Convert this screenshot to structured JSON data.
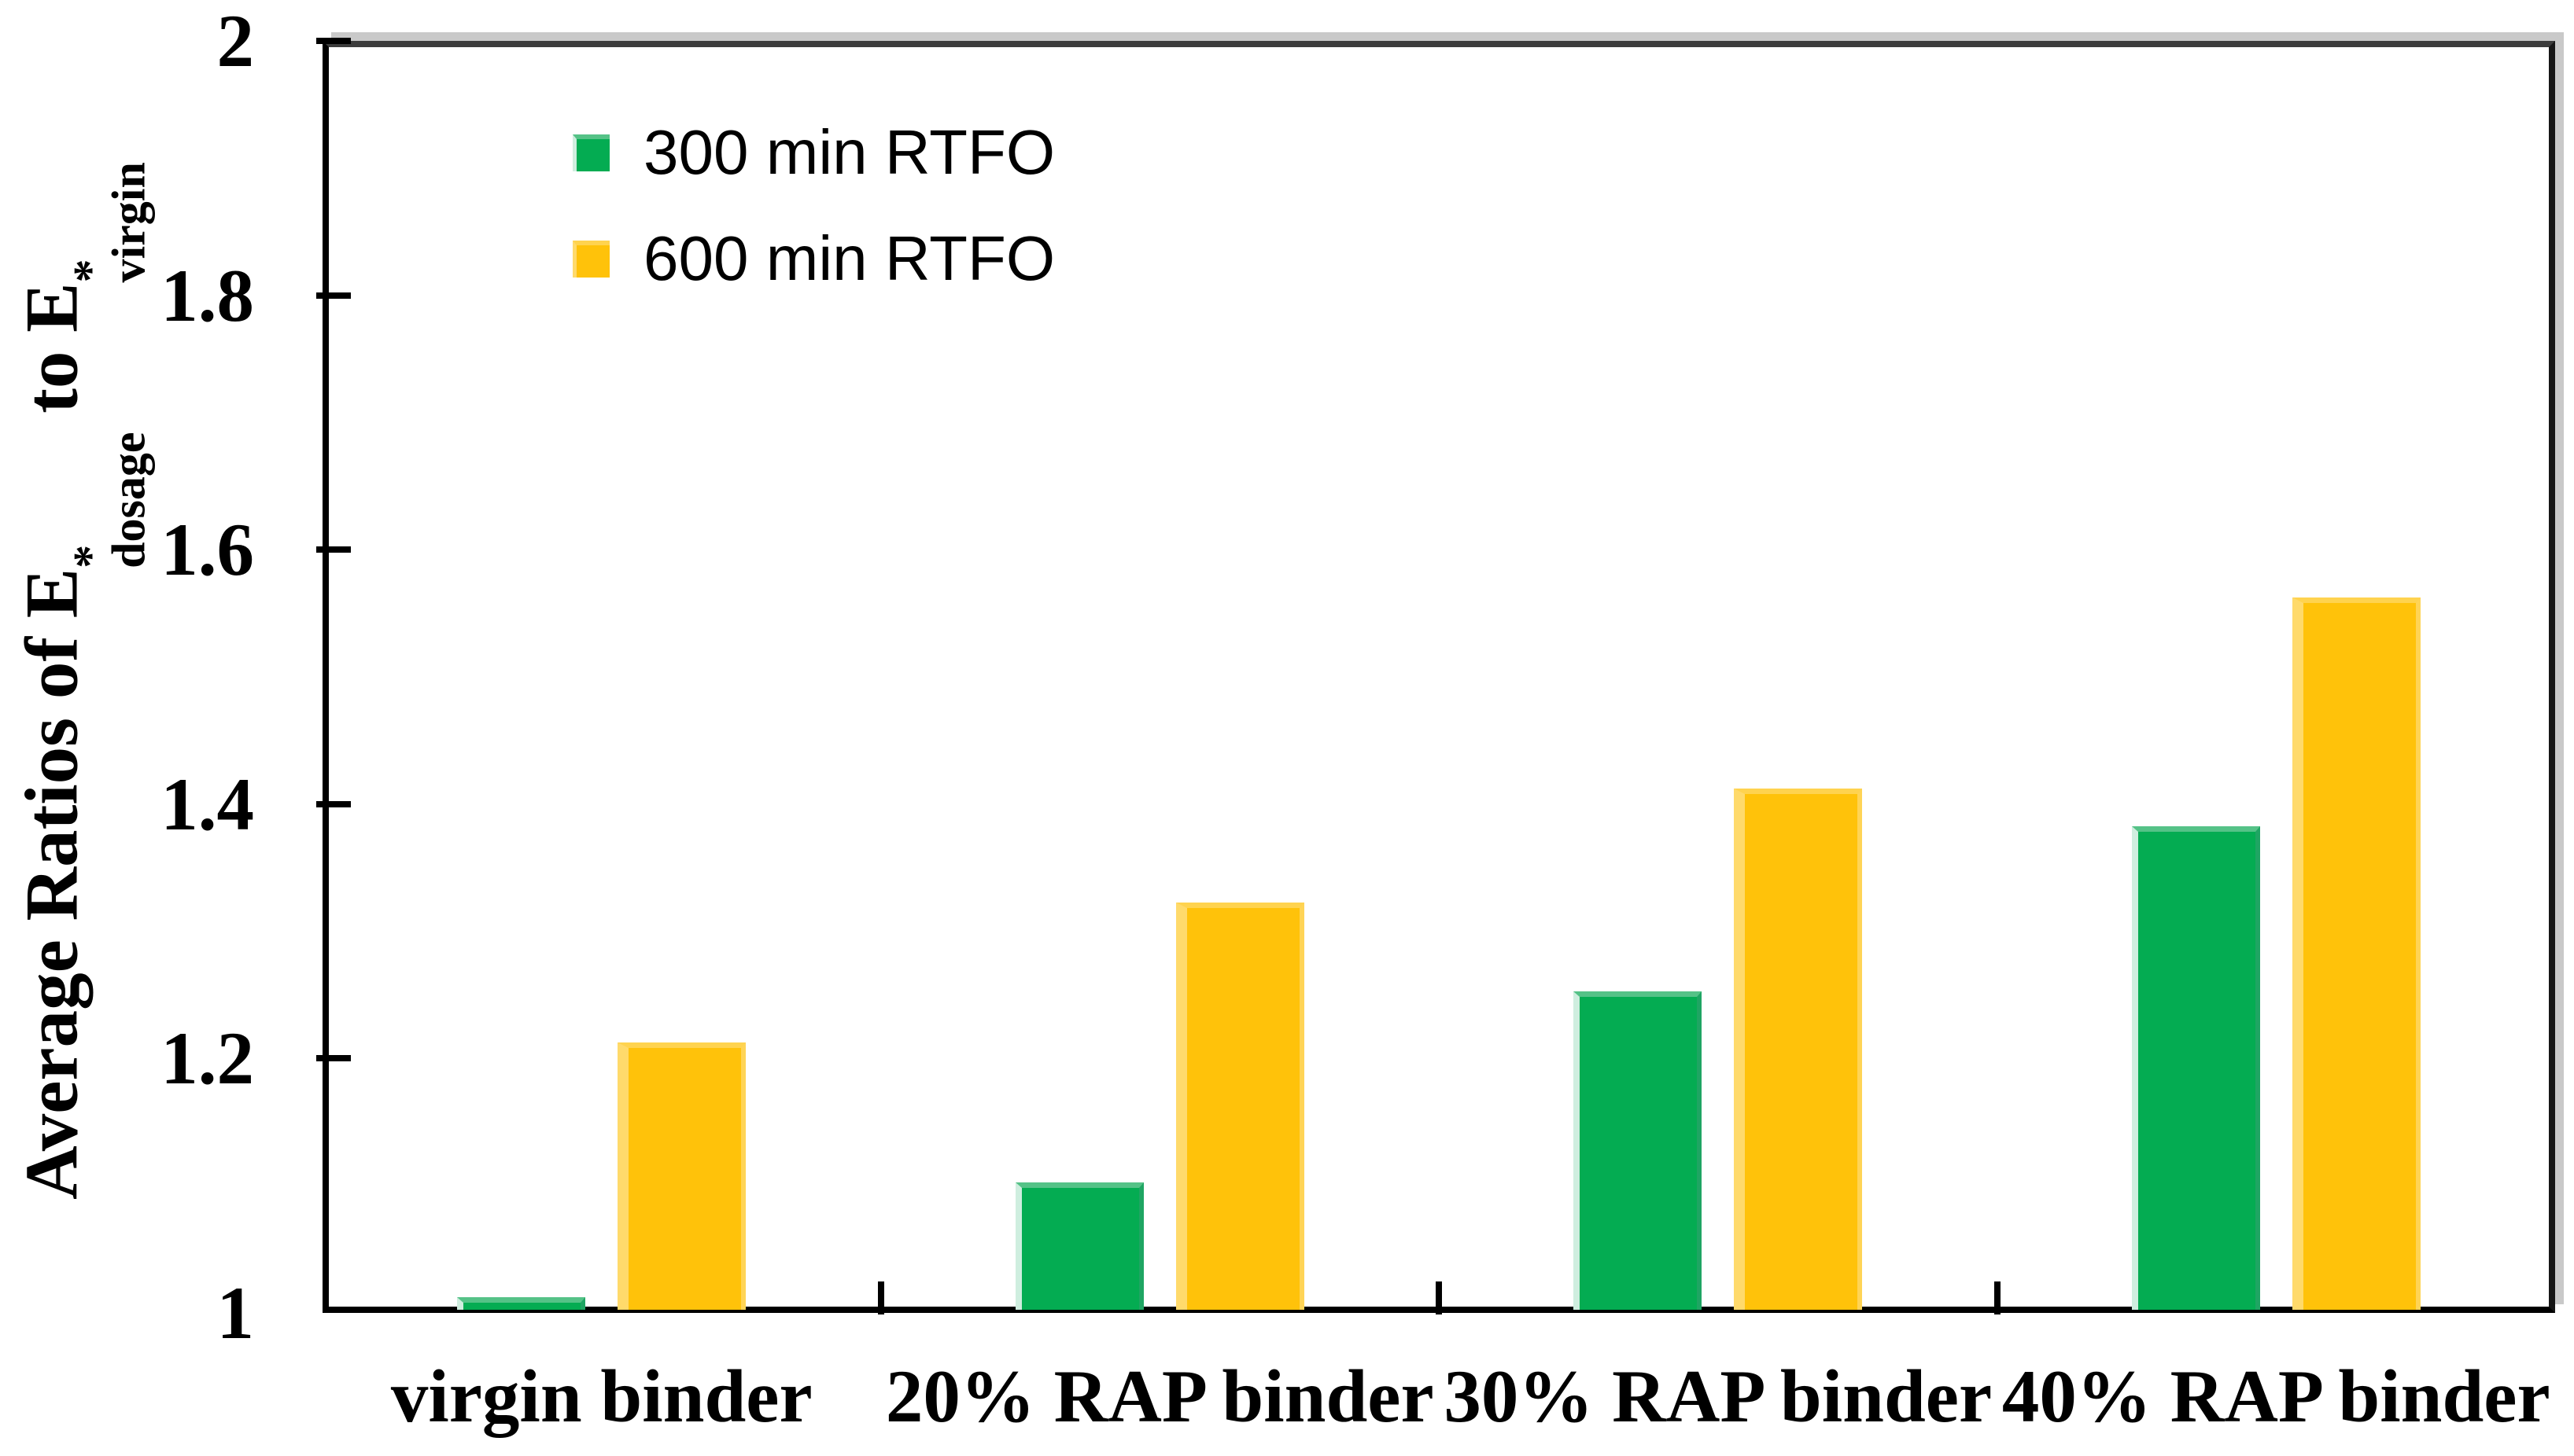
{
  "figure": {
    "background": "#FFFFFF",
    "axis_color": "#000000",
    "plot_border_top_color": "#3C3C3C",
    "plot_border_shadow_color": "#C9C9C9"
  },
  "y_axis_title": {
    "prefix": "Average Ratios of ",
    "e1": "E",
    "e1_sup": "*",
    "e1_sub": "dosage",
    "mid": " to ",
    "e2": "E",
    "e2_sup": "*",
    "e2_sub": "virgin"
  },
  "chart_data": {
    "type": "bar",
    "title": "",
    "xlabel": "",
    "ylabel": "Average Ratios of E*_dosage to E*_virgin",
    "categories": [
      "virgin binder",
      "20% RAP binder",
      "30% RAP binder",
      "40% RAP binder"
    ],
    "series": [
      {
        "name": "300 min RTFO",
        "values": [
          1.01,
          1.1,
          1.25,
          1.38
        ],
        "color": "#04AC52",
        "edge_top": "#55C287",
        "edge_left": "#CFEEDF",
        "edge_right": "#1FA563"
      },
      {
        "name": "600 min RTFO",
        "values": [
          1.21,
          1.32,
          1.41,
          1.56
        ],
        "color": "#FFC20A",
        "edge_top": "#FFD34F",
        "edge_left": "#FFDA6B",
        "edge_right": "#FFD456"
      }
    ],
    "ylim": [
      1,
      2
    ],
    "ytick_step": 0.2,
    "ytick_labels": [
      "1",
      "1.2",
      "1.4",
      "1.6",
      "1.8",
      "2"
    ],
    "grid": false,
    "legend_position": "inside top-left"
  }
}
